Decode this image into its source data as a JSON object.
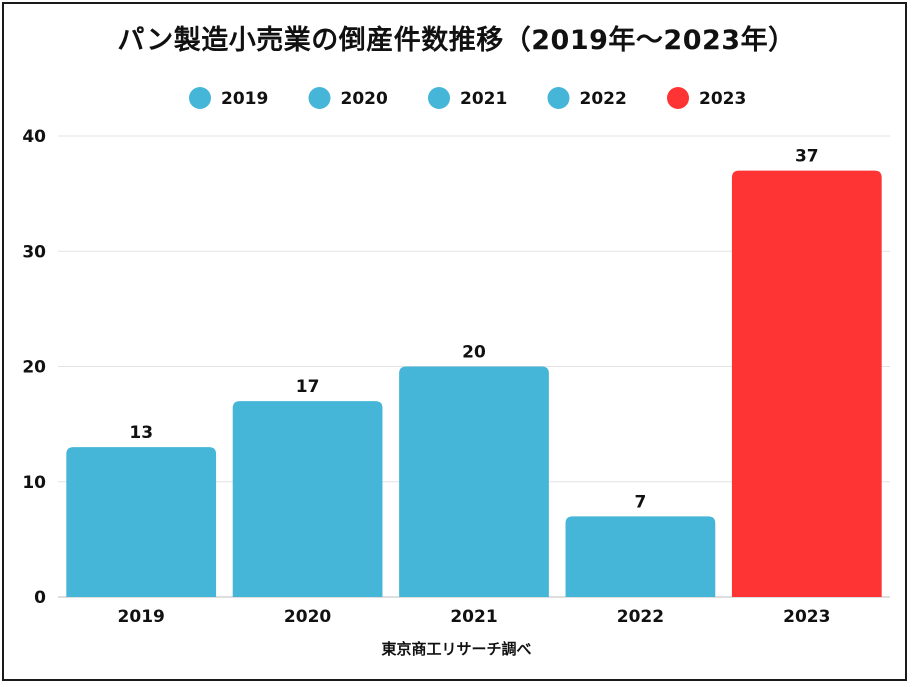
{
  "chart_data": {
    "type": "bar",
    "title": "パン製造小売業の倒産件数推移（2019年〜2023年）",
    "categories": [
      "2019",
      "2020",
      "2021",
      "2022",
      "2023"
    ],
    "values": [
      13,
      17,
      20,
      7,
      37
    ],
    "colors": [
      "#45b6d8",
      "#45b6d8",
      "#45b6d8",
      "#45b6d8",
      "#fe3333"
    ],
    "legend": [
      "2019",
      "2020",
      "2021",
      "2022",
      "2023"
    ],
    "legend_position": "top-center",
    "ylim": [
      0,
      40
    ],
    "yticks": [
      0,
      10,
      20,
      30,
      40
    ],
    "xlabel": "東京商工リサーチ調べ",
    "ylabel": "",
    "grid": true
  }
}
